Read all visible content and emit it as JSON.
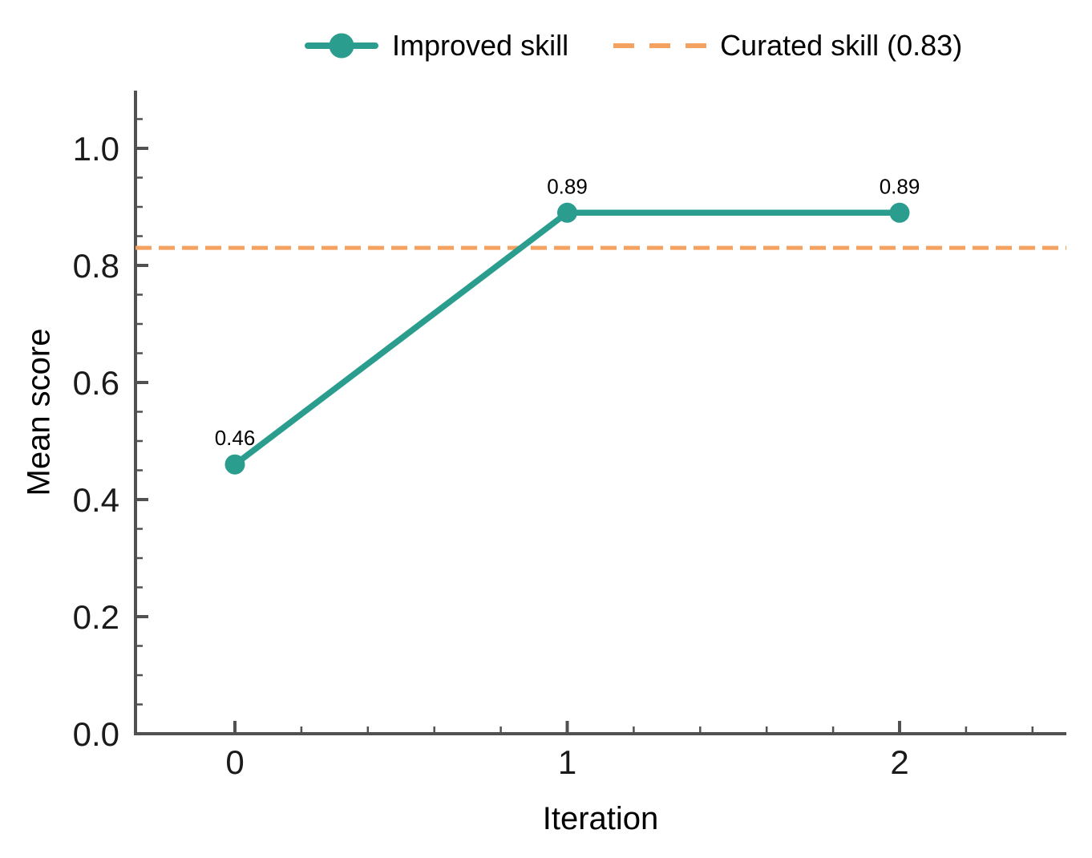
{
  "chart_data": {
    "type": "line",
    "title": "",
    "xlabel": "Iteration",
    "ylabel": "Mean score",
    "x": [
      0,
      1,
      2
    ],
    "series": [
      {
        "name": "Improved skill",
        "values": [
          0.46,
          0.89,
          0.89
        ],
        "point_labels": [
          "0.46",
          "0.89",
          "0.89"
        ],
        "color": "#2a9d8f",
        "style": "solid-with-round-markers"
      }
    ],
    "reference_line": {
      "name": "Curated skill (0.83)",
      "value": 0.83,
      "color": "#f4a261",
      "style": "dashed"
    },
    "xlim": [
      -0.3,
      2.5
    ],
    "ylim": [
      0,
      1.1
    ],
    "x_ticks": [
      0,
      1,
      2
    ],
    "x_tick_labels": [
      "0",
      "1",
      "2"
    ],
    "x_minor_step": 0.2,
    "y_ticks": [
      0.0,
      0.2,
      0.4,
      0.6,
      0.8,
      1.0
    ],
    "y_tick_labels": [
      "0.0",
      "0.2",
      "0.4",
      "0.6",
      "0.8",
      "1.0"
    ],
    "y_minor_step": 0.05,
    "grid": false,
    "legend": {
      "position": "top-center",
      "frame": false,
      "entries": [
        "Improved skill",
        "Curated skill (0.83)"
      ]
    },
    "axis_color": "#515151",
    "tick_label_color": "#1a1a1a",
    "text_color": "#000000",
    "background_color": "#ffffff"
  }
}
